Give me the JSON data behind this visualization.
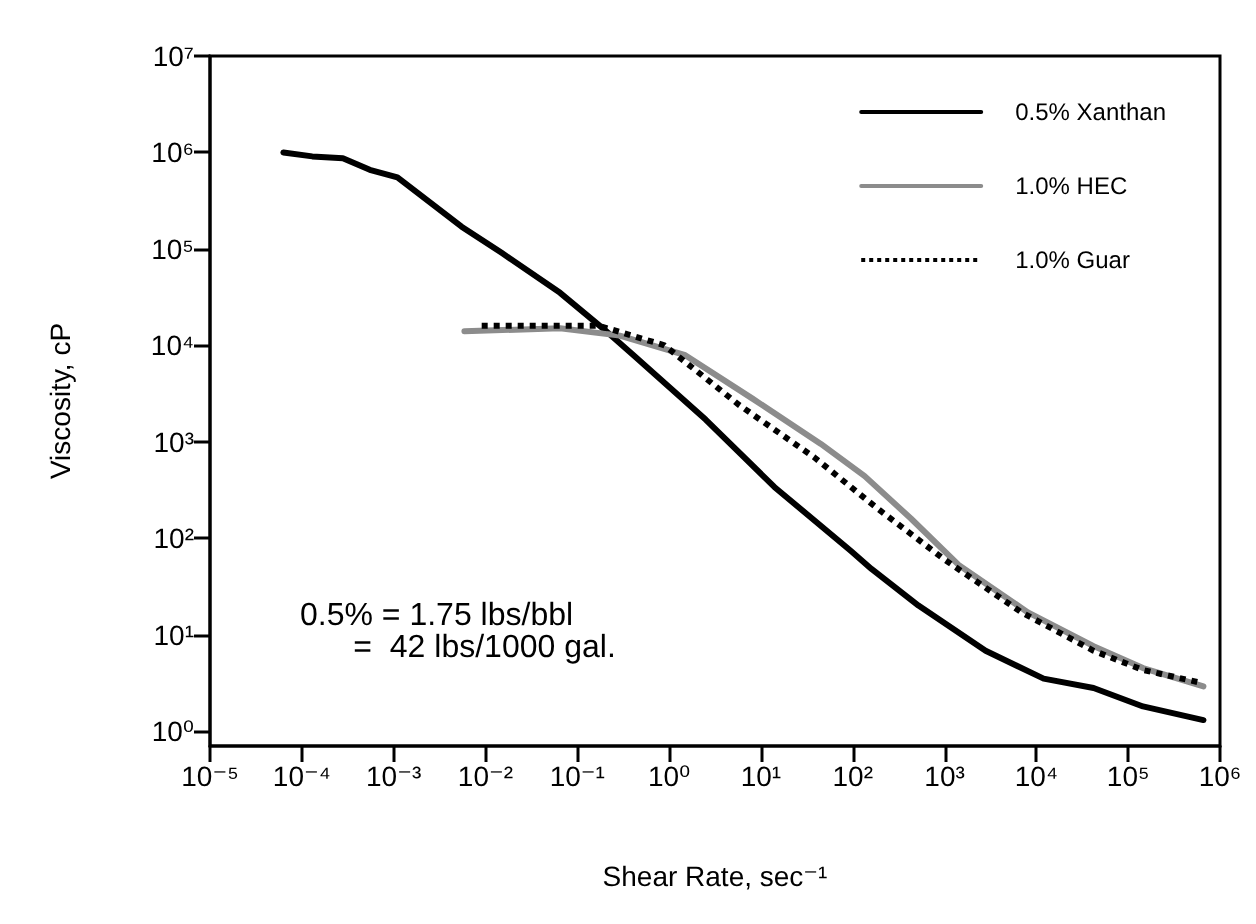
{
  "chart_data": {
    "type": "line",
    "xlabel": "Shear Rate, sec⁻¹",
    "ylabel": "Viscosity, cP",
    "log": "xy",
    "grid": false,
    "legend": "top right",
    "marker": "none",
    "xlim": [
      1e-05,
      1000000.0
    ],
    "ylim": [
      0.7,
      10000000.0
    ],
    "xticks": [
      {
        "value": 1e-05,
        "label": "10⁻⁵"
      },
      {
        "value": 0.0001,
        "label": "10⁻⁴"
      },
      {
        "value": 0.001,
        "label": "10⁻³"
      },
      {
        "value": 0.01,
        "label": "10⁻²"
      },
      {
        "value": 0.1,
        "label": "10⁻¹"
      },
      {
        "value": 1,
        "label": "10⁰"
      },
      {
        "value": 10,
        "label": "10¹"
      },
      {
        "value": 100,
        "label": "10²"
      },
      {
        "value": 1000,
        "label": "10³"
      },
      {
        "value": 10000,
        "label": "10⁴"
      },
      {
        "value": 100000,
        "label": "10⁵"
      },
      {
        "value": 1000000,
        "label": "10⁶"
      }
    ],
    "yticks": [
      {
        "value": 1,
        "label": "10⁰"
      },
      {
        "value": 10,
        "label": "10¹"
      },
      {
        "value": 100,
        "label": "10²"
      },
      {
        "value": 1000,
        "label": "10³"
      },
      {
        "value": 10000,
        "label": "10⁴"
      },
      {
        "value": 100000,
        "label": "10⁵"
      },
      {
        "value": 1000000,
        "label": "10⁶"
      },
      {
        "value": 10000000,
        "label": "10⁷"
      }
    ],
    "annotations": [
      "0.5% = 1.75 lbs/bbl\n      =  42 lbs/1000 gal."
    ],
    "series": [
      {
        "name": "0.5% Xanthan",
        "color": "#000000",
        "line_style": "solid",
        "x": [
          6.3e-05,
          0.00013,
          0.00028,
          0.00055,
          0.0011,
          0.0055,
          0.015,
          0.065,
          0.19,
          0.41,
          2.5,
          14,
          95,
          160,
          520,
          2800,
          12000,
          42000,
          145000,
          660000
        ],
        "values": [
          1000000,
          910000,
          870000,
          660000,
          550000,
          170000,
          91000,
          35000,
          15000,
          7900,
          1700,
          340,
          74,
          48,
          20,
          6.8,
          3.5,
          2.8,
          1.8,
          1.3
        ]
      },
      {
        "name": "1.0% HEC",
        "color": "#8c8c8c",
        "line_style": "solid",
        "x": [
          0.0059,
          0.065,
          0.29,
          1.5,
          8.1,
          45,
          135,
          430,
          1450,
          8100,
          42000,
          145000,
          660000
        ],
        "values": [
          14000,
          15000,
          12600,
          7900,
          2800,
          950,
          440,
          160,
          52,
          17,
          7.6,
          4.5,
          2.9
        ]
      },
      {
        "name": "1.0% Guar",
        "color": "#000000",
        "line_style": "dotted",
        "x": [
          0.0091,
          0.17,
          0.89,
          5.8,
          38,
          190,
          1000,
          6900,
          42000,
          145000,
          590000
        ],
        "values": [
          16000,
          16000,
          10000,
          2400,
          690,
          200,
          60,
          17,
          6.8,
          4.3,
          3.2
        ]
      }
    ]
  }
}
